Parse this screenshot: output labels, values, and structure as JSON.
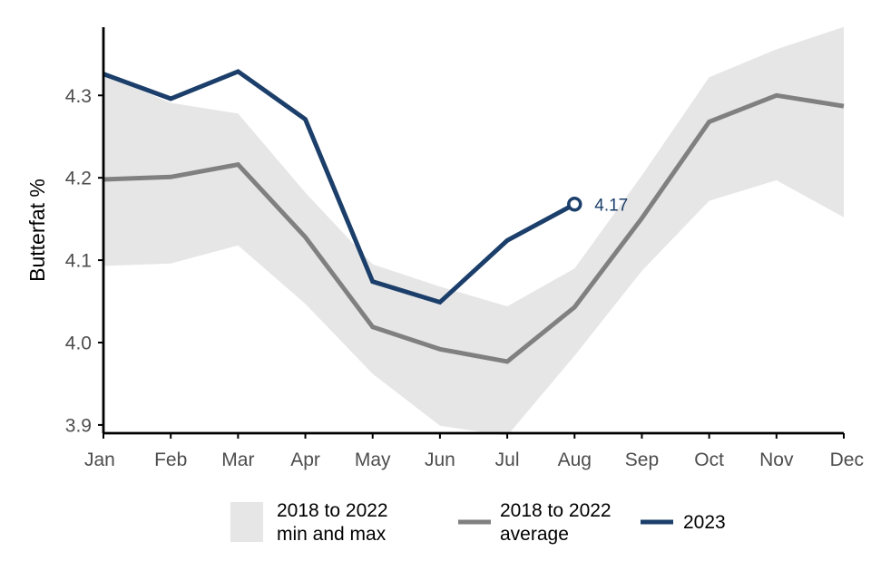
{
  "chart_data": {
    "type": "line",
    "title": "",
    "xlabel": "",
    "ylabel": "Butterfat %",
    "categories": [
      "Jan",
      "Feb",
      "Mar",
      "Apr",
      "May",
      "Jun",
      "Jul",
      "Aug",
      "Sep",
      "Oct",
      "Nov",
      "Dec"
    ],
    "ylim": [
      3.89,
      4.385
    ],
    "yticks": [
      "3.9",
      "4.0",
      "4.1",
      "4.2",
      "4.3"
    ],
    "grid": false,
    "band": {
      "name": "2018 to 2022 min and max",
      "min": [
        4.093,
        4.096,
        4.118,
        4.047,
        3.962,
        3.899,
        3.887,
        3.984,
        4.087,
        4.172,
        4.197,
        4.152
      ],
      "max": [
        4.325,
        4.291,
        4.278,
        4.182,
        4.095,
        4.068,
        4.044,
        4.09,
        4.203,
        4.322,
        4.356,
        4.383
      ]
    },
    "series": [
      {
        "name": "2018 to 2022 average",
        "values": [
          4.198,
          4.201,
          4.216,
          4.128,
          4.019,
          3.992,
          3.977,
          4.043,
          4.151,
          4.268,
          4.3,
          4.287
        ]
      },
      {
        "name": "2023",
        "values": [
          4.326,
          4.296,
          4.329,
          4.271,
          4.074,
          4.049,
          4.124,
          4.168,
          null,
          null,
          null,
          null
        ]
      }
    ],
    "annotations": [
      {
        "label": "4.17",
        "category": "Aug",
        "series": "2023"
      }
    ],
    "legend": {
      "position": "bottom",
      "band_label": [
        "2018 to 2022",
        "min and max"
      ],
      "average_label": [
        "2018 to 2022",
        "average"
      ],
      "current_label": [
        "2023"
      ]
    },
    "colors": {
      "band": "#e6e6e6",
      "average": "#808080",
      "current": "#1b3f6a",
      "axis": "#000000",
      "tick_text": "#4d4d4d"
    }
  }
}
